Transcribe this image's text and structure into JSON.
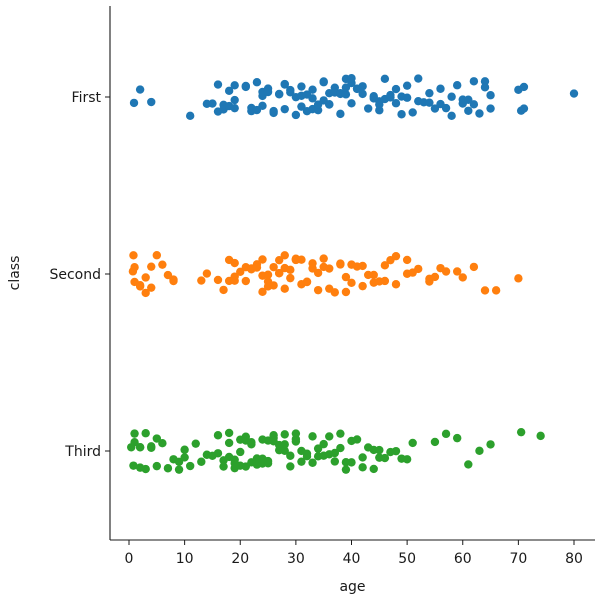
{
  "chart_data": {
    "type": "scatter",
    "subtype": "strip",
    "title": "",
    "xlabel": "age",
    "ylabel": "class",
    "xlim": [
      -4,
      83
    ],
    "xticks": [
      0,
      10,
      20,
      30,
      40,
      50,
      60,
      70,
      80
    ],
    "categories": [
      "First",
      "Second",
      "Third"
    ],
    "grid": false,
    "legend": "none",
    "jitter": true,
    "series": [
      {
        "category": "First",
        "color": "#1f77b4",
        "values": [
          0.9,
          2,
          4,
          11,
          14,
          15,
          16,
          16,
          17,
          17,
          18,
          18,
          19,
          19,
          19,
          21,
          21,
          22,
          22,
          23,
          23,
          24,
          24,
          24,
          25,
          25,
          26,
          26,
          27,
          27,
          28,
          28,
          28,
          29,
          29,
          30,
          30,
          31,
          31,
          31,
          32,
          32,
          33,
          33,
          33,
          34,
          34,
          35,
          35,
          35,
          36,
          36,
          36,
          37,
          37,
          38,
          38,
          38,
          39,
          39,
          39,
          40,
          40,
          40,
          41,
          41,
          42,
          42,
          43,
          44,
          44,
          45,
          45,
          45,
          46,
          46,
          47,
          47,
          48,
          48,
          49,
          49,
          50,
          50,
          51,
          52,
          52,
          53,
          54,
          54,
          55,
          56,
          56,
          57,
          58,
          58,
          59,
          60,
          60,
          61,
          61,
          62,
          62,
          63,
          64,
          64,
          65,
          65,
          70,
          70.5,
          71,
          71,
          80
        ]
      },
      {
        "category": "Second",
        "color": "#ff7f0e",
        "values": [
          0.7,
          0.8,
          1,
          1,
          2,
          2,
          3,
          3,
          4,
          4,
          5,
          6,
          7,
          8,
          8,
          13,
          14,
          16,
          17,
          18,
          18,
          19,
          19,
          19,
          20,
          21,
          21,
          22,
          22,
          23,
          23,
          24,
          24,
          24,
          25,
          25,
          25,
          26,
          26,
          27,
          27,
          27,
          28,
          28,
          28,
          29,
          29,
          30,
          30,
          30,
          31,
          31,
          32,
          32,
          33,
          33,
          34,
          34,
          35,
          35,
          36,
          36,
          37,
          38,
          38,
          39,
          39,
          40,
          40,
          41,
          42,
          42,
          43,
          44,
          44,
          45,
          46,
          46,
          47,
          48,
          48,
          50,
          50,
          51,
          52,
          54,
          54,
          55,
          56,
          57,
          59,
          60,
          62,
          64,
          66,
          70
        ]
      },
      {
        "category": "Third",
        "color": "#2ca02c",
        "values": [
          0.4,
          0.8,
          1,
          1,
          2,
          2,
          2,
          3,
          3,
          4,
          4,
          5,
          5,
          6,
          7,
          8,
          9,
          9,
          10,
          10,
          11,
          12,
          13,
          14,
          15,
          16,
          16,
          17,
          17,
          18,
          18,
          18,
          19,
          19,
          19,
          20,
          20,
          20,
          21,
          21,
          21,
          22,
          22,
          22,
          23,
          23,
          23,
          24,
          24,
          24,
          25,
          25,
          25,
          26,
          26,
          26,
          27,
          27,
          28,
          28,
          28,
          29,
          29,
          30,
          30,
          30,
          31,
          31,
          32,
          32,
          33,
          33,
          34,
          34,
          35,
          35,
          36,
          36,
          37,
          37,
          38,
          38,
          39,
          39,
          40,
          40,
          41,
          42,
          42,
          43,
          44,
          44,
          45,
          45,
          46,
          47,
          48,
          49,
          50,
          51,
          55,
          57,
          59,
          61,
          63,
          65,
          70.5,
          74
        ]
      }
    ]
  }
}
